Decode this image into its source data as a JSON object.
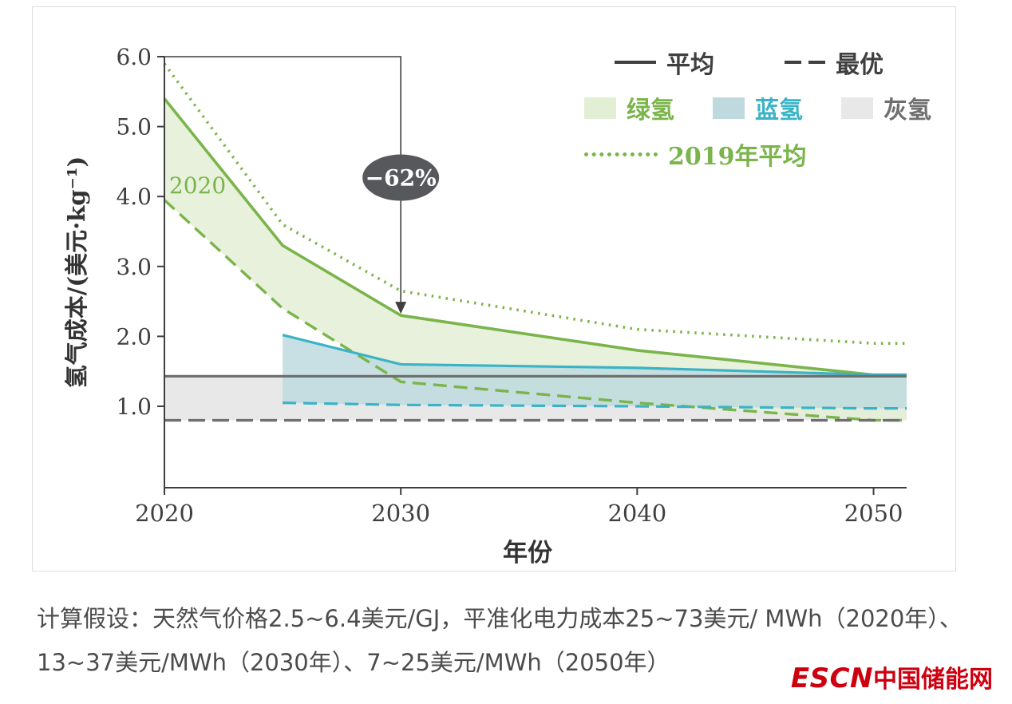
{
  "caption": {
    "text": "计算假设：天然气价格2.5~6.4美元/GJ，平准化电力成本25~73美元/ MWh（2020年）、13~37美元/MWh（2030年）、7~25美元/MWh（2050年）"
  },
  "logo": {
    "escn": "ESCN",
    "cn": "中国储能网",
    "color": "#ce000f"
  },
  "chart_data": {
    "type": "line",
    "title": "",
    "xlabel": "年份",
    "ylabel": "氢气成本/(美元·kg⁻¹)",
    "xlim": [
      2020,
      2051.4
    ],
    "ylim": [
      -0.164,
      6.0
    ],
    "xticks": [
      2020,
      2030,
      2040,
      2050
    ],
    "yticks": [
      1,
      2,
      3,
      4,
      5,
      6
    ],
    "ytick_labels": [
      "1.0",
      "2.0",
      "3.0",
      "4.0",
      "5.0",
      "6.0"
    ],
    "grid": "off",
    "legend_position": "top-right",
    "colors": {
      "green": "#7ab44a",
      "green_fill": "#e3efd5",
      "blue": "#3ab3c6",
      "blue_fill": "#bedade",
      "grey_line": "#6f6f6f",
      "grey_fill": "#e8e8e8",
      "axis": "#3f3f3f",
      "annotation_bg": "#57585c"
    },
    "series": [
      {
        "id": "green-2019-avg",
        "label": "2019年平均",
        "style": "dotted",
        "color_key": "green",
        "width": 3.6,
        "x": [
          2020,
          2025,
          2030,
          2040,
          2050
        ],
        "y": [
          5.9,
          3.6,
          2.65,
          2.1,
          1.9
        ]
      },
      {
        "id": "green-avg",
        "label": "绿氢平均",
        "style": "solid",
        "color_key": "green",
        "width": 3.6,
        "x": [
          2020,
          2025,
          2030,
          2040,
          2050
        ],
        "y": [
          5.4,
          3.3,
          2.3,
          1.8,
          1.45
        ]
      },
      {
        "id": "green-best",
        "label": "绿氢最优",
        "style": "dashed",
        "color_key": "green",
        "width": 3.4,
        "x": [
          2020,
          2025,
          2030,
          2040,
          2050
        ],
        "y": [
          3.95,
          2.4,
          1.35,
          1.05,
          0.8
        ]
      },
      {
        "id": "blue-avg",
        "label": "蓝氢平均",
        "style": "solid",
        "color_key": "blue",
        "width": 3.2,
        "x": [
          2025,
          2030,
          2040,
          2050
        ],
        "y": [
          2.02,
          1.6,
          1.55,
          1.45
        ]
      },
      {
        "id": "blue-best",
        "label": "蓝氢最优",
        "style": "dashed",
        "color_key": "blue",
        "width": 3.2,
        "x": [
          2025,
          2030,
          2040,
          2050
        ],
        "y": [
          1.05,
          1.02,
          1.0,
          0.97
        ]
      },
      {
        "id": "grey-avg",
        "label": "灰氢平均",
        "style": "solid",
        "color_key": "grey_line",
        "width": 3.2,
        "x": [
          2020,
          2050
        ],
        "y": [
          1.43,
          1.43
        ]
      },
      {
        "id": "grey-best",
        "label": "灰氢最优",
        "style": "longdash",
        "color_key": "grey_line",
        "width": 3.4,
        "x": [
          2020,
          2050
        ],
        "y": [
          0.8,
          0.8
        ]
      }
    ],
    "bands": [
      {
        "id": "grey",
        "upper": "grey-avg",
        "lower": "grey-best",
        "fill_key": "grey_fill",
        "opacity": 1
      },
      {
        "id": "green",
        "upper": "green-avg",
        "lower": "green-best",
        "fill_key": "green_fill",
        "opacity": 0.85
      },
      {
        "id": "blue",
        "upper": "blue-avg",
        "lower": "blue-best",
        "fill_key": "blue_fill",
        "opacity": 0.85
      }
    ],
    "annotation": {
      "text": "−62%",
      "x": 2030,
      "target_y": 2.3,
      "bubble_y": 4.27
    },
    "inline_label": {
      "text": "2020",
      "x": 2020.2,
      "y": 4.05
    },
    "legend": {
      "average_label": "平均",
      "best_label": "最优",
      "green_label": "绿氢",
      "blue_label": "蓝氢",
      "grey_label": "灰氢",
      "avg2019_label": "2019年平均"
    }
  }
}
